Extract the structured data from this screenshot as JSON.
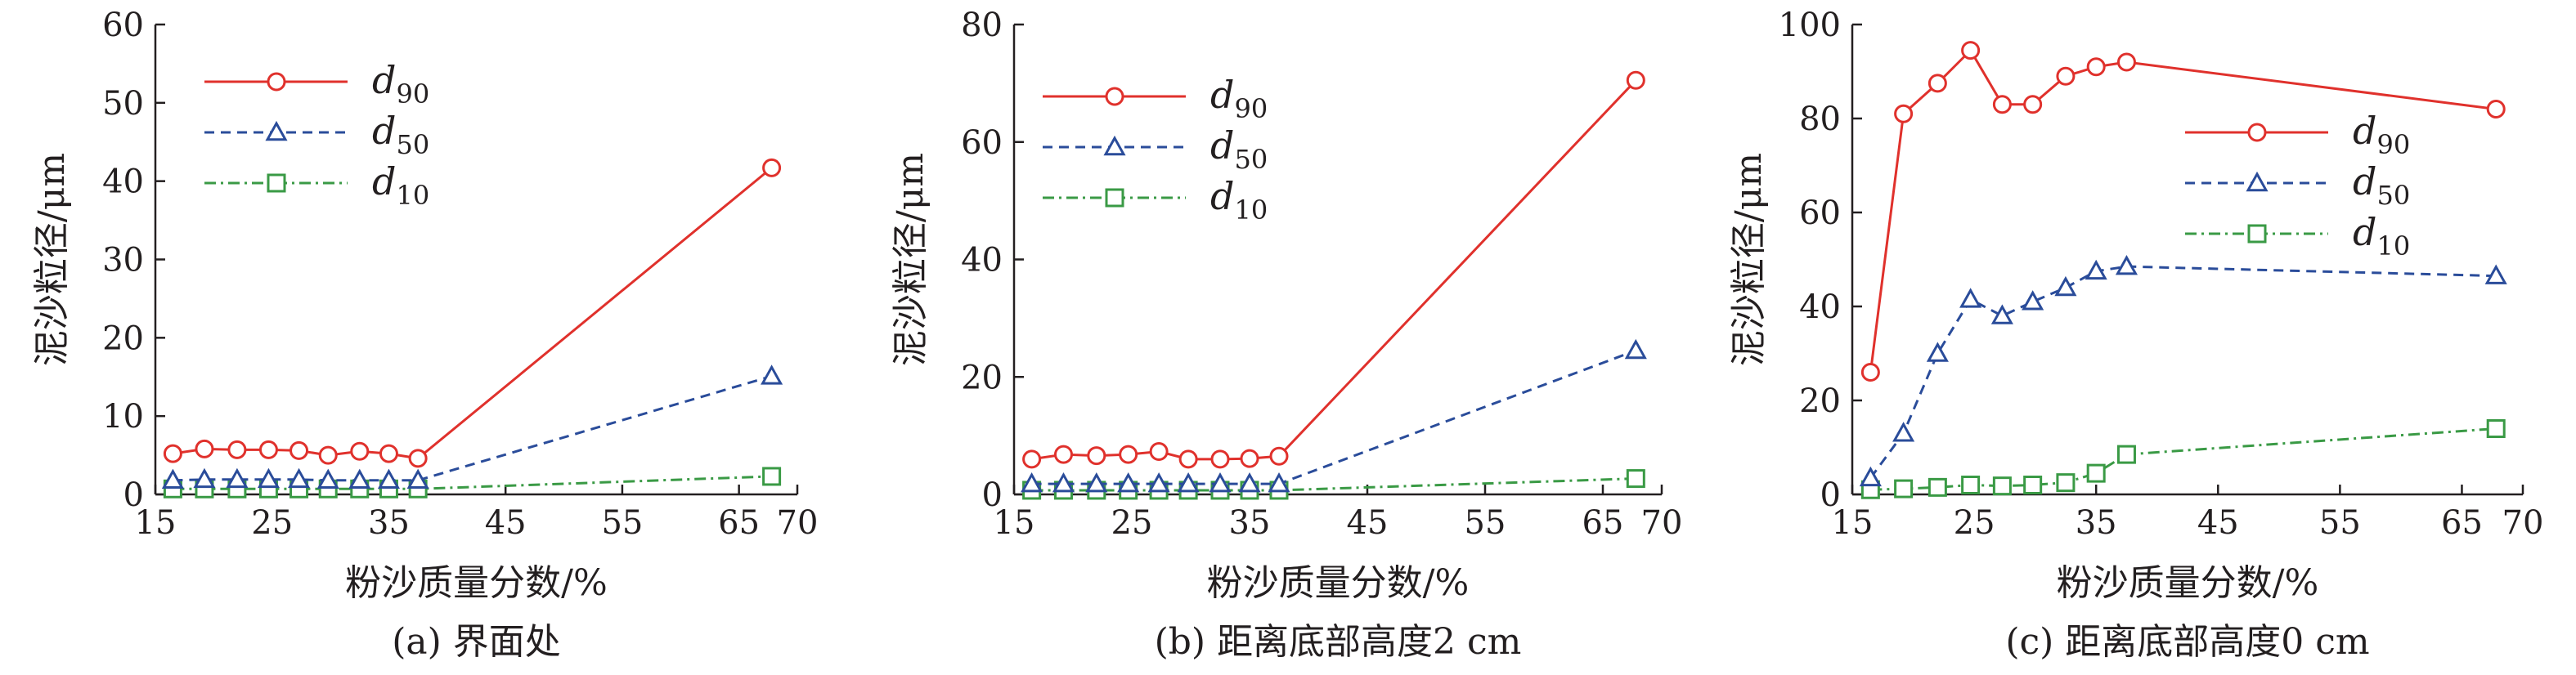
{
  "chart_data": [
    {
      "type": "line",
      "title": "",
      "caption": "(a) 界面处",
      "xlabel": "粉沙质量分数/%",
      "ylabel": "泥沙粒径/μm",
      "xlim": [
        15,
        70
      ],
      "ylim": [
        0,
        60
      ],
      "xticks": [
        15,
        25,
        35,
        45,
        55,
        65,
        70
      ],
      "yticks": [
        0,
        10,
        20,
        30,
        40,
        50,
        60
      ],
      "grid": false,
      "legend_position": "top-left",
      "series": [
        {
          "name": "d",
          "sub": "90",
          "color": "#e0312c",
          "dash": "none",
          "marker": "circle",
          "points": [
            [
              16.5,
              5.2
            ],
            [
              19.2,
              5.8
            ],
            [
              22,
              5.7
            ],
            [
              24.7,
              5.7
            ],
            [
              27.3,
              5.6
            ],
            [
              29.8,
              5.0
            ],
            [
              32.5,
              5.5
            ],
            [
              35,
              5.2
            ],
            [
              37.5,
              4.6
            ],
            [
              67.8,
              41.7
            ]
          ]
        },
        {
          "name": "d",
          "sub": "50",
          "color": "#2a4c9a",
          "dash": "12,8",
          "marker": "triangle",
          "points": [
            [
              16.5,
              1.8
            ],
            [
              19.2,
              1.9
            ],
            [
              22,
              1.9
            ],
            [
              24.7,
              1.9
            ],
            [
              27.3,
              1.9
            ],
            [
              29.8,
              1.8
            ],
            [
              32.5,
              1.8
            ],
            [
              35,
              1.8
            ],
            [
              37.5,
              1.8
            ],
            [
              67.8,
              15.1
            ]
          ]
        },
        {
          "name": "d",
          "sub": "10",
          "color": "#3a9a45",
          "dash": "14,6,3,6",
          "marker": "square",
          "points": [
            [
              16.5,
              0.7
            ],
            [
              19.2,
              0.7
            ],
            [
              22,
              0.7
            ],
            [
              24.7,
              0.7
            ],
            [
              27.3,
              0.7
            ],
            [
              29.8,
              0.7
            ],
            [
              32.5,
              0.7
            ],
            [
              35,
              0.7
            ],
            [
              37.5,
              0.7
            ],
            [
              67.8,
              2.3
            ]
          ]
        }
      ]
    },
    {
      "type": "line",
      "title": "",
      "caption": "(b) 距离底部高度2 cm",
      "xlabel": "粉沙质量分数/%",
      "ylabel": "泥沙粒径/μm",
      "xlim": [
        15,
        70
      ],
      "ylim": [
        0,
        80
      ],
      "xticks": [
        15,
        25,
        35,
        45,
        55,
        65,
        70
      ],
      "yticks": [
        0,
        20,
        40,
        60,
        80
      ],
      "grid": false,
      "legend_position": "top-left",
      "series": [
        {
          "name": "d",
          "sub": "90",
          "color": "#e0312c",
          "dash": "none",
          "marker": "circle",
          "points": [
            [
              16.5,
              6.0
            ],
            [
              19.2,
              6.8
            ],
            [
              22,
              6.6
            ],
            [
              24.7,
              6.8
            ],
            [
              27.3,
              7.3
            ],
            [
              29.8,
              6.0
            ],
            [
              32.5,
              6.0
            ],
            [
              35,
              6.1
            ],
            [
              37.5,
              6.5
            ],
            [
              67.8,
              70.5
            ]
          ]
        },
        {
          "name": "d",
          "sub": "50",
          "color": "#2a4c9a",
          "dash": "12,8",
          "marker": "triangle",
          "points": [
            [
              16.5,
              1.8
            ],
            [
              19.2,
              1.8
            ],
            [
              22,
              1.8
            ],
            [
              24.7,
              1.8
            ],
            [
              27.3,
              1.8
            ],
            [
              29.8,
              1.8
            ],
            [
              32.5,
              1.8
            ],
            [
              35,
              1.8
            ],
            [
              37.5,
              1.8
            ],
            [
              67.8,
              24.5
            ]
          ]
        },
        {
          "name": "d",
          "sub": "10",
          "color": "#3a9a45",
          "dash": "14,6,3,6",
          "marker": "square",
          "points": [
            [
              16.5,
              0.7
            ],
            [
              19.2,
              0.7
            ],
            [
              22,
              0.7
            ],
            [
              24.7,
              0.7
            ],
            [
              27.3,
              0.7
            ],
            [
              29.8,
              0.7
            ],
            [
              32.5,
              0.7
            ],
            [
              35,
              0.7
            ],
            [
              37.5,
              0.7
            ],
            [
              67.8,
              2.7
            ]
          ]
        }
      ]
    },
    {
      "type": "line",
      "title": "",
      "caption": "(c) 距离底部高度0 cm",
      "xlabel": "粉沙质量分数/%",
      "ylabel": "泥沙粒径/μm",
      "xlim": [
        15,
        70
      ],
      "ylim": [
        0,
        100
      ],
      "xticks": [
        15,
        25,
        35,
        45,
        55,
        65,
        70
      ],
      "yticks": [
        0,
        20,
        40,
        60,
        80,
        100
      ],
      "grid": false,
      "legend_position": "top-right",
      "series": [
        {
          "name": "d",
          "sub": "90",
          "color": "#e0312c",
          "dash": "none",
          "marker": "circle",
          "points": [
            [
              16.5,
              26
            ],
            [
              19.2,
              81
            ],
            [
              22,
              87.5
            ],
            [
              24.7,
              94.5
            ],
            [
              27.3,
              83
            ],
            [
              29.8,
              83
            ],
            [
              32.5,
              89
            ],
            [
              35,
              91
            ],
            [
              37.5,
              92
            ],
            [
              67.8,
              82
            ]
          ]
        },
        {
          "name": "d",
          "sub": "50",
          "color": "#2a4c9a",
          "dash": "12,8",
          "marker": "triangle",
          "points": [
            [
              16.5,
              3.5
            ],
            [
              19.2,
              13
            ],
            [
              22,
              30
            ],
            [
              24.7,
              41.5
            ],
            [
              27.3,
              38
            ],
            [
              29.8,
              41
            ],
            [
              32.5,
              44
            ],
            [
              35,
              47.5
            ],
            [
              37.5,
              48.5
            ],
            [
              67.8,
              46.5
            ]
          ]
        },
        {
          "name": "d",
          "sub": "10",
          "color": "#3a9a45",
          "dash": "14,6,3,6",
          "marker": "square",
          "points": [
            [
              16.5,
              1.0
            ],
            [
              19.2,
              1.2
            ],
            [
              22,
              1.5
            ],
            [
              24.7,
              2.0
            ],
            [
              27.3,
              1.8
            ],
            [
              29.8,
              2.0
            ],
            [
              32.5,
              2.5
            ],
            [
              35,
              4.5
            ],
            [
              37.5,
              8.5
            ],
            [
              67.8,
              14
            ]
          ]
        }
      ]
    }
  ]
}
